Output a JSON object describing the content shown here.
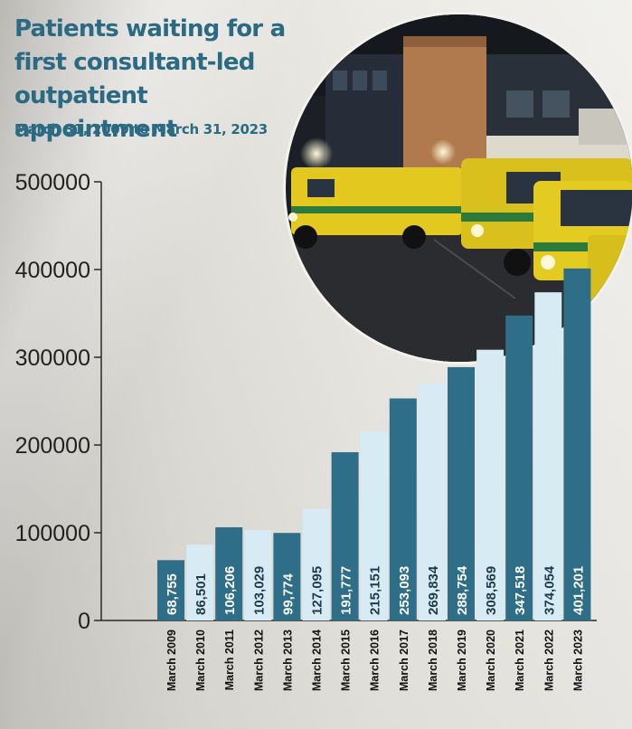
{
  "chart_data": {
    "type": "bar",
    "title": "Patients waiting for a first consultant-led outpatient appointment",
    "subtitle": "March 31, 2009 to March 31, 2023",
    "categories": [
      "March 2009",
      "March 2010",
      "March 2011",
      "March 2012",
      "March 2013",
      "March 2014",
      "March 2015",
      "March 2016",
      "March 2017",
      "March 2018",
      "March 2019",
      "March 2020",
      "March 2021",
      "March 2022",
      "March 2023"
    ],
    "values": [
      68755,
      86501,
      106206,
      103029,
      99774,
      127095,
      191777,
      215151,
      253093,
      269834,
      288754,
      308569,
      347518,
      374054,
      401201
    ],
    "value_labels": [
      "68,755",
      "86,501",
      "106,206",
      "103,029",
      "99,774",
      "127,095",
      "191,777",
      "215,151",
      "253,093",
      "269,834",
      "288,754",
      "308,569",
      "347,518",
      "374,054",
      "401,201"
    ],
    "ylim": [
      0,
      500000
    ],
    "yticks": [
      0,
      100000,
      200000,
      300000,
      400000,
      500000
    ],
    "ytick_labels": [
      "0",
      "100000",
      "200000",
      "300000",
      "400000",
      "500000"
    ],
    "xlabel": "",
    "ylabel": "",
    "grid": false,
    "colors": {
      "dark": "#2f6e88",
      "light": "#d6ebf4"
    }
  },
  "photo": {
    "description_icon": "ambulance-photo"
  }
}
